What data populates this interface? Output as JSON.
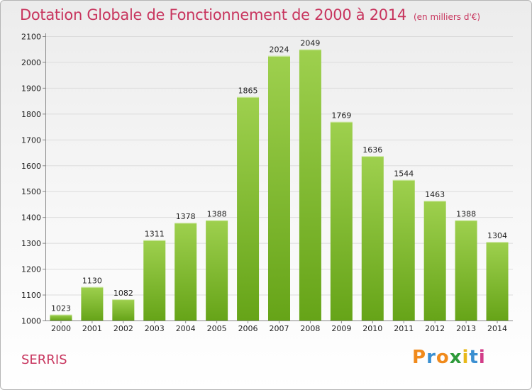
{
  "header": {
    "title": "Dotation Globale de Fonctionnement de 2000 à 2014",
    "unit": "(en milliers d'€)"
  },
  "footer": {
    "city": "SERRIS",
    "logo_text": "Proxiti"
  },
  "colors": {
    "title": "#c8355e",
    "bar_top": "#9ed04e",
    "bar_bottom": "#66a418",
    "logo_letters": [
      "#f08a1c",
      "#3a8fd1",
      "#f08a1c",
      "#2e9a3a",
      "#e8b818",
      "#3a8fd1",
      "#d23c88"
    ]
  },
  "chart_data": {
    "type": "bar",
    "title": "Dotation Globale de Fonctionnement de 2000 à 2014",
    "xlabel": "",
    "ylabel": "",
    "categories": [
      "2000",
      "2001",
      "2002",
      "2003",
      "2004",
      "2005",
      "2006",
      "2007",
      "2008",
      "2009",
      "2010",
      "2011",
      "2012",
      "2013",
      "2014"
    ],
    "values": [
      1023,
      1130,
      1082,
      1311,
      1378,
      1388,
      1865,
      2024,
      2049,
      1769,
      1636,
      1544,
      1463,
      1388,
      1304
    ],
    "ylim": [
      1000,
      2100
    ],
    "yticks": [
      1000,
      1100,
      1200,
      1300,
      1400,
      1500,
      1600,
      1700,
      1800,
      1900,
      2000,
      2100
    ],
    "grid": true,
    "legend": "none"
  }
}
